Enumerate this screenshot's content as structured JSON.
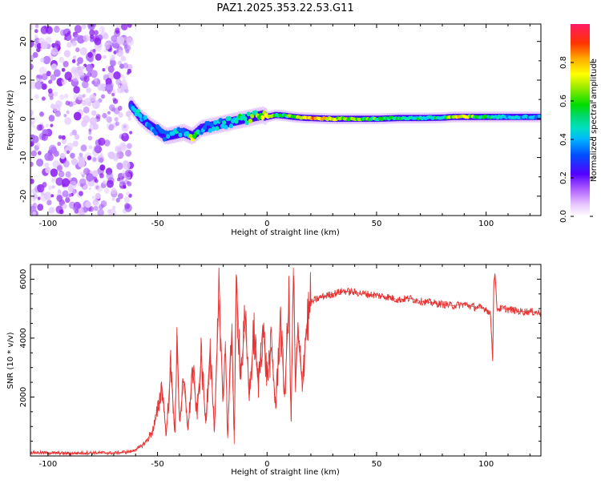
{
  "title": "PAZ1.2025.353.22.53.G11",
  "chart_data": [
    {
      "type": "heatmap",
      "xlabel": "Height of straight line (km)",
      "ylabel": "Frequency (Hz)",
      "xlim": [
        -108,
        125
      ],
      "ylim": [
        -25,
        24.5
      ],
      "xticks": [
        -100,
        -50,
        0,
        50,
        100
      ],
      "xtick_labels": [
        "-100",
        "-50",
        "0",
        "50",
        "100"
      ],
      "yticks": [
        -20,
        -10,
        0,
        10,
        20
      ],
      "ytick_labels": [
        "-20",
        "-10",
        "0",
        "10",
        "20"
      ],
      "colorbar": {
        "label": "Normalized spectral amplitude",
        "range": [
          0,
          1
        ],
        "ticks": [
          0.0,
          0.2,
          0.4,
          0.6,
          0.8
        ],
        "tick_labels": [
          "0.0",
          "0.2",
          "0.4",
          "0.6",
          "0.8"
        ],
        "colormap": [
          "#ffffff",
          "#e8c8ff",
          "#9b30ff",
          "#3300ff",
          "#0066ff",
          "#00ccff",
          "#00e6b0",
          "#00dd00",
          "#aaee00",
          "#ffff00",
          "#ffaa00",
          "#ff3300",
          "#ff1a66"
        ]
      },
      "noise_region": {
        "x": [
          -108,
          -62
        ],
        "freq": [
          -25,
          24.5
        ]
      },
      "ridge": {
        "x": [
          -62,
          -58,
          -54,
          -50,
          -46,
          -42,
          -38,
          -34,
          -30,
          -26,
          -22,
          -18,
          -14,
          -10,
          -6,
          -2,
          0,
          4,
          8,
          12,
          16,
          20,
          30,
          40,
          50,
          60,
          70,
          80,
          85,
          90,
          100,
          110,
          125
        ],
        "freq": [
          3.5,
          0.5,
          -1.5,
          -3,
          -4.5,
          -4,
          -3.5,
          -4.5,
          -2.5,
          -2,
          -1.5,
          -1,
          -0.5,
          0,
          0.5,
          1,
          0.5,
          1,
          0.8,
          0.5,
          0.3,
          0.2,
          0,
          0,
          0,
          0.2,
          0.2,
          0.3,
          0.5,
          0.5,
          0.5,
          0.5,
          0.5
        ],
        "amplitude": [
          0.45,
          0.5,
          0.4,
          0.35,
          0.4,
          0.5,
          0.4,
          0.75,
          0.45,
          0.4,
          0.5,
          0.45,
          0.5,
          0.6,
          0.65,
          0.7,
          0.75,
          0.6,
          0.55,
          0.8,
          0.7,
          0.9,
          0.85,
          0.7,
          0.6,
          0.55,
          0.55,
          0.55,
          0.75,
          0.8,
          0.6,
          0.45,
          0.45
        ]
      }
    },
    {
      "type": "line",
      "xlabel": "Height of straight line (km)",
      "ylabel": "SNR (10 * v/v)",
      "xlim": [
        -108,
        125
      ],
      "ylim": [
        0,
        6500
      ],
      "xticks": [
        -100,
        -50,
        0,
        50,
        100
      ],
      "xtick_labels": [
        "-100",
        "-50",
        "0",
        "50",
        "100"
      ],
      "yticks": [
        2000,
        4000,
        6000
      ],
      "ytick_labels": [
        "2000",
        "4000",
        "6000"
      ],
      "series": [
        {
          "name": "SNR",
          "color": "#e63333",
          "x": [
            -108,
            -100,
            -90,
            -80,
            -70,
            -62,
            -58,
            -55,
            -52,
            -50,
            -48,
            -46,
            -44,
            -42,
            -41,
            -40,
            -38,
            -36,
            -34,
            -32,
            -30,
            -28,
            -26,
            -24,
            -22,
            -20,
            -19,
            -18,
            -16,
            -15,
            -14,
            -12,
            -10,
            -8,
            -6,
            -4,
            -2,
            0,
            2,
            4,
            6,
            8,
            10,
            11,
            12,
            13,
            14,
            16,
            18,
            20,
            22,
            25,
            30,
            35,
            40,
            45,
            50,
            55,
            60,
            65,
            70,
            75,
            80,
            85,
            90,
            95,
            100,
            102,
            103,
            103.5,
            104,
            105,
            108,
            112,
            116,
            120,
            125
          ],
          "y": [
            120,
            100,
            90,
            110,
            100,
            150,
            300,
            500,
            900,
            1500,
            2400,
            700,
            3000,
            800,
            4100,
            1200,
            2500,
            900,
            3000,
            1400,
            3400,
            1100,
            3700,
            800,
            5300,
            2000,
            3900,
            600,
            4500,
            400,
            5900,
            2800,
            4500,
            2100,
            4200,
            2400,
            4400,
            2700,
            3700,
            1600,
            4700,
            2000,
            5300,
            1200,
            6400,
            2300,
            4200,
            2500,
            4400,
            5200,
            5300,
            5400,
            5500,
            5600,
            5550,
            5500,
            5450,
            5400,
            5300,
            5350,
            5250,
            5200,
            5150,
            5100,
            5150,
            5050,
            5000,
            4800,
            3300,
            5900,
            6200,
            5000,
            5000,
            4950,
            4900,
            4900,
            4850
          ]
        }
      ]
    }
  ]
}
